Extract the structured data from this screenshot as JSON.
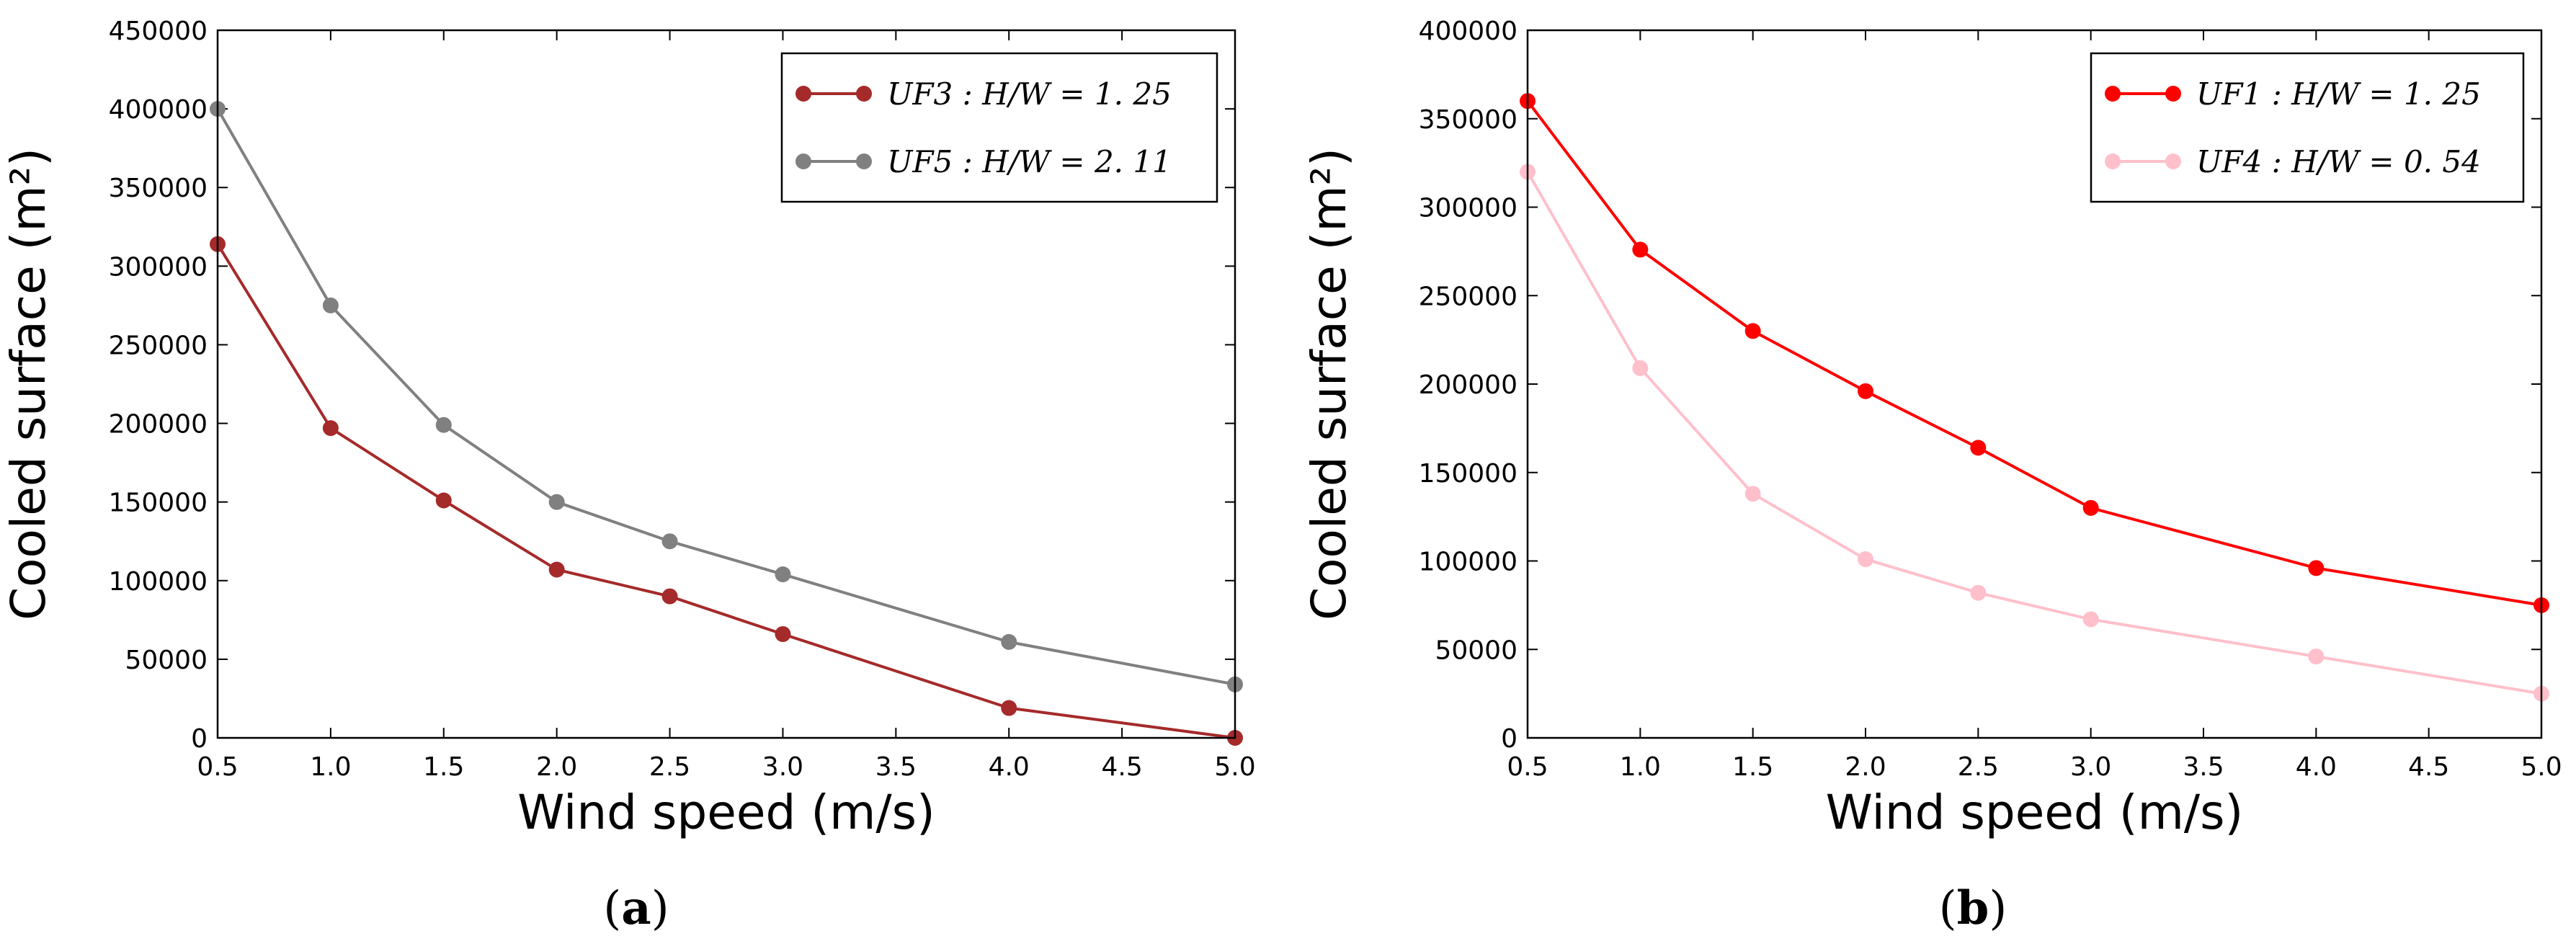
{
  "chart_data": [
    {
      "type": "line",
      "panel": "a",
      "caption_letter": "a",
      "xlabel": "Wind speed (m/s)",
      "ylabel": "Cooled surface (m²)",
      "xlim": [
        0.5,
        5.0
      ],
      "ylim": [
        0,
        450000
      ],
      "xticks": [
        "0.5",
        "1.0",
        "1.5",
        "2.0",
        "2.5",
        "3.0",
        "3.5",
        "4.0",
        "4.5",
        "5.0"
      ],
      "yticks": [
        "0",
        "50000",
        "100000",
        "150000",
        "200000",
        "250000",
        "300000",
        "350000",
        "400000",
        "450000"
      ],
      "legend_position": "top-right",
      "series": [
        {
          "name": "UF3 : H/W = 1. 25",
          "color": "#a52a2a",
          "x": [
            0.5,
            1.0,
            1.5,
            2.0,
            2.5,
            3.0,
            4.0,
            5.0
          ],
          "y": [
            314000,
            197000,
            151000,
            107000,
            90000,
            66000,
            19000,
            0
          ]
        },
        {
          "name": "UF5 : H/W = 2. 11",
          "color": "#808080",
          "x": [
            0.5,
            1.0,
            1.5,
            2.0,
            2.5,
            3.0,
            4.0,
            5.0
          ],
          "y": [
            400000,
            275000,
            199000,
            150000,
            125000,
            104000,
            61000,
            34000
          ]
        }
      ]
    },
    {
      "type": "line",
      "panel": "b",
      "caption_letter": "b",
      "xlabel": "Wind speed (m/s)",
      "ylabel": "Cooled surface (m²)",
      "xlim": [
        0.5,
        5.0
      ],
      "ylim": [
        0,
        400000
      ],
      "xticks": [
        "0.5",
        "1.0",
        "1.5",
        "2.0",
        "2.5",
        "3.0",
        "3.5",
        "4.0",
        "4.5",
        "5.0"
      ],
      "yticks": [
        "0",
        "50000",
        "100000",
        "150000",
        "200000",
        "250000",
        "300000",
        "350000",
        "400000"
      ],
      "legend_position": "top-right",
      "series": [
        {
          "name": "UF1 : H/W = 1. 25",
          "color": "#ff0000",
          "x": [
            0.5,
            1.0,
            1.5,
            2.0,
            2.5,
            3.0,
            4.0,
            5.0
          ],
          "y": [
            360000,
            276000,
            230000,
            196000,
            164000,
            130000,
            96000,
            75000
          ]
        },
        {
          "name": "UF4 : H/W = 0. 54",
          "color": "#ffc0cb",
          "x": [
            0.5,
            1.0,
            1.5,
            2.0,
            2.5,
            3.0,
            4.0,
            5.0
          ],
          "y": [
            320000,
            209000,
            138000,
            101000,
            82000,
            67000,
            46000,
            25000
          ]
        }
      ]
    }
  ]
}
